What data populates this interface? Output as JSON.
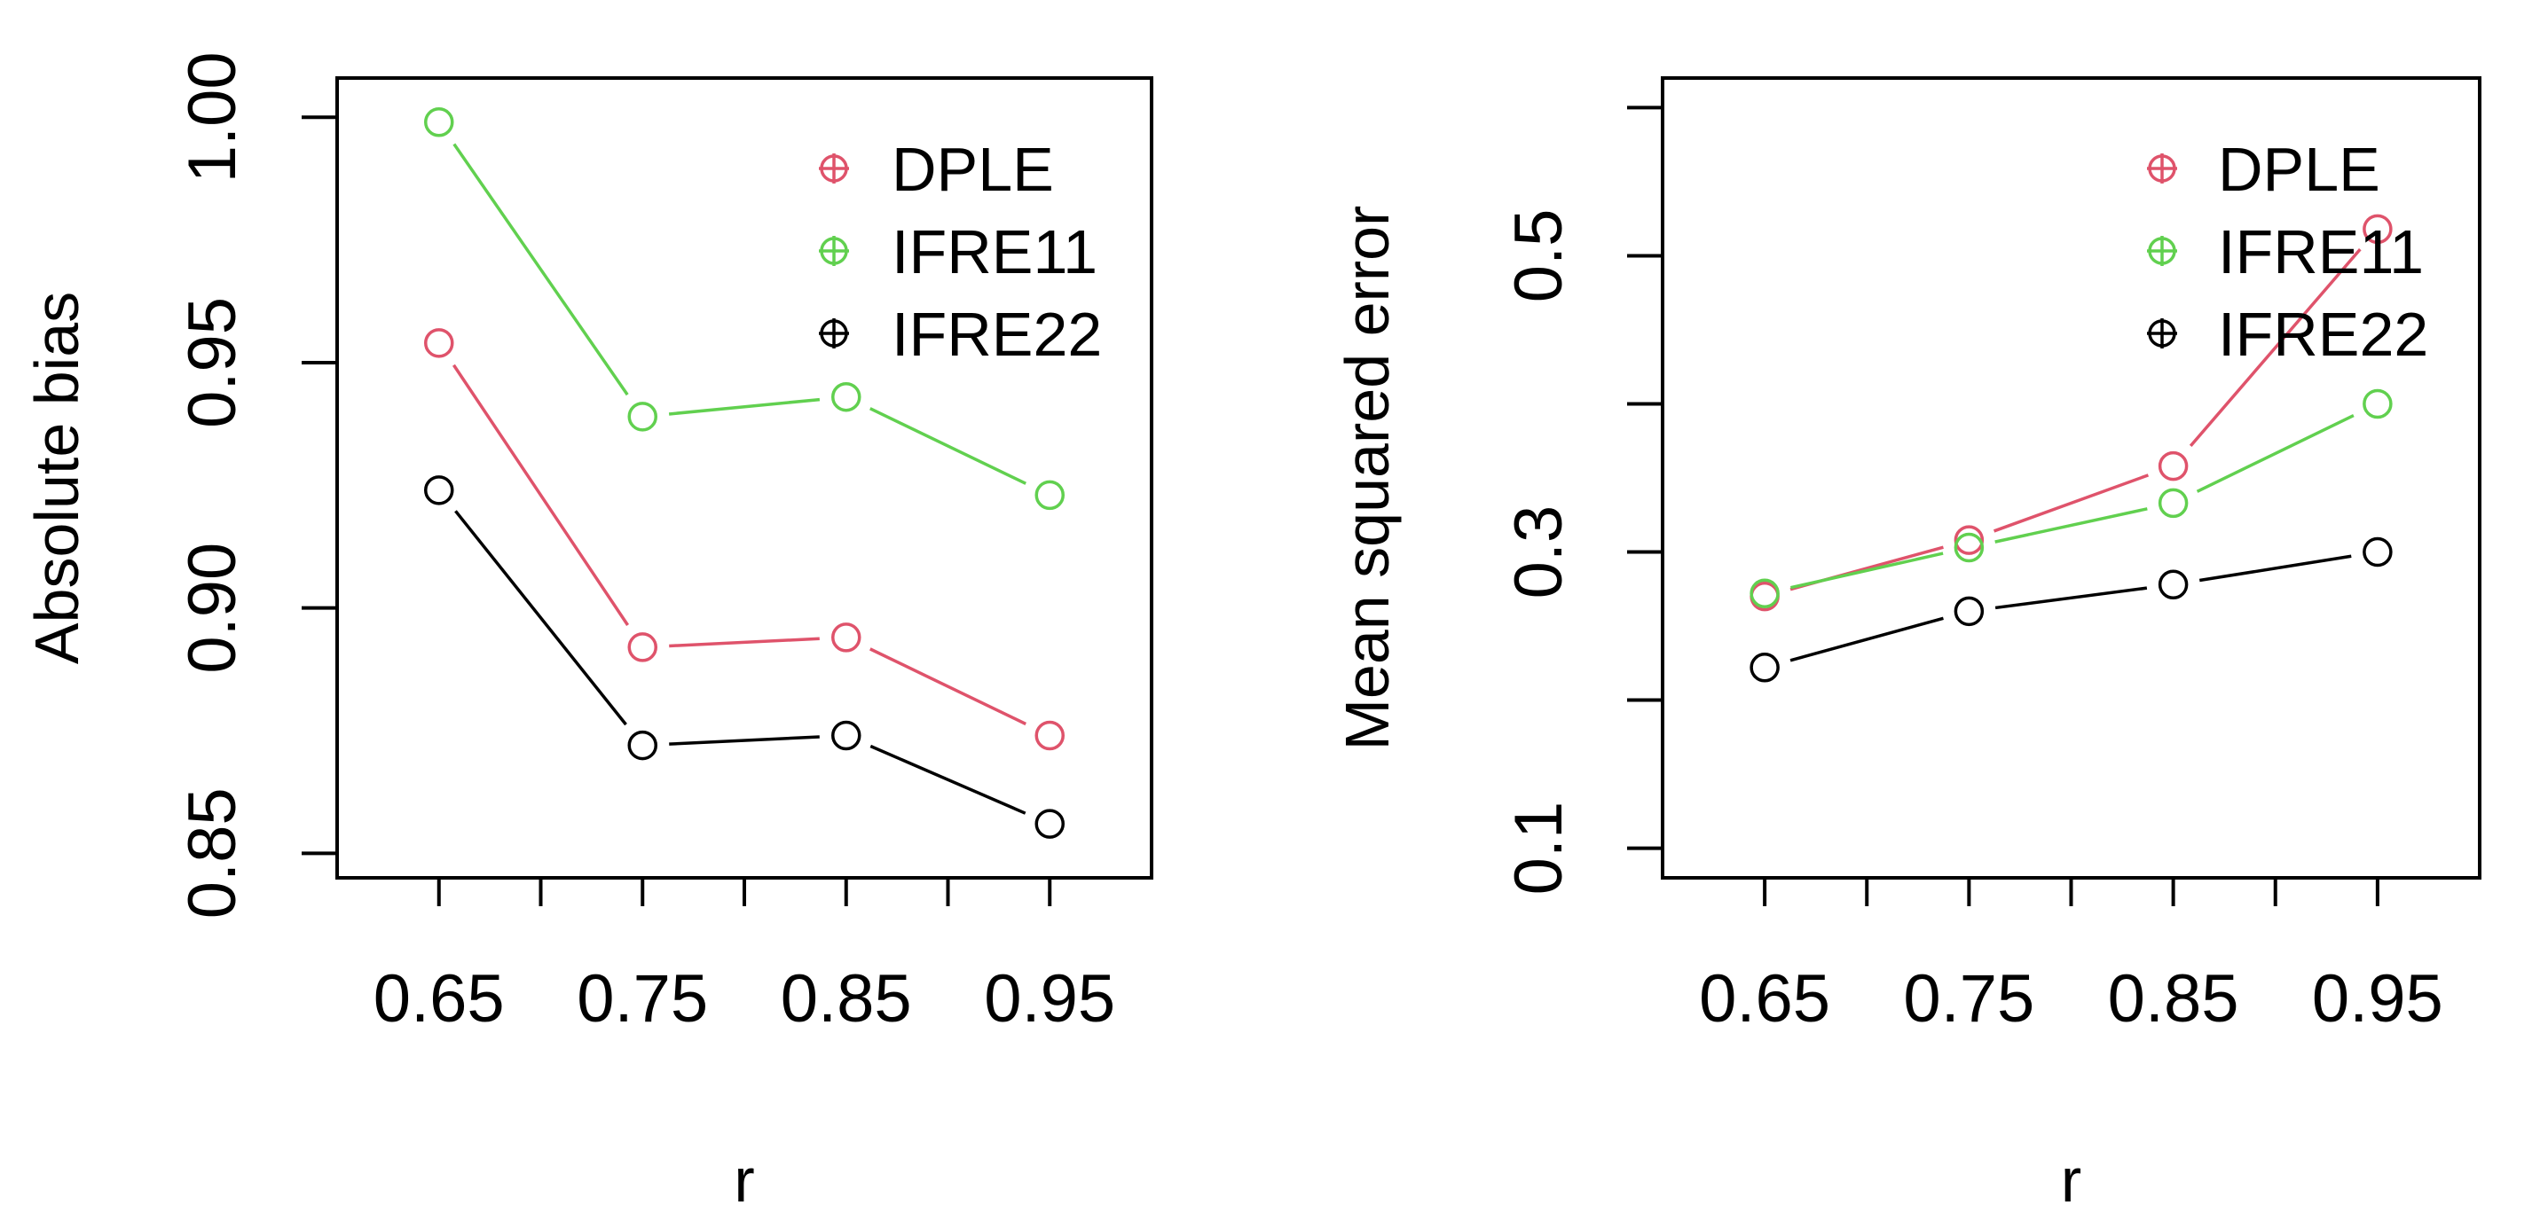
{
  "chart_data": [
    {
      "type": "line",
      "title": "",
      "xlabel": "r",
      "ylabel": "Absolute bias",
      "x": [
        0.65,
        0.75,
        0.85,
        0.95
      ],
      "x_tick_labels": [
        "0.65",
        "0.75",
        "0.85",
        "0.95"
      ],
      "x_minor_ticks": [
        0.7,
        0.8,
        0.9
      ],
      "xlim": [
        0.6,
        1.0
      ],
      "ylim": [
        0.845,
        1.008
      ],
      "y_ticks": [
        0.85,
        0.9,
        0.95,
        1.0
      ],
      "y_tick_labels": [
        "0.85",
        "0.90",
        "0.95",
        "1.00"
      ],
      "legend_position": "top-right",
      "series": [
        {
          "name": "DPLE",
          "color": "#DF536B",
          "values": [
            0.954,
            0.892,
            0.894,
            0.874
          ]
        },
        {
          "name": "IFRE11",
          "color": "#61D04F",
          "values": [
            0.999,
            0.939,
            0.943,
            0.923
          ]
        },
        {
          "name": "IFRE22",
          "color": "#000000",
          "values": [
            0.924,
            0.872,
            0.874,
            0.856
          ]
        }
      ]
    },
    {
      "type": "line",
      "title": "",
      "xlabel": "r",
      "ylabel": "Mean squared error",
      "x": [
        0.65,
        0.75,
        0.85,
        0.95
      ],
      "x_tick_labels": [
        "0.65",
        "0.75",
        "0.85",
        "0.95"
      ],
      "x_minor_ticks": [
        0.7,
        0.8,
        0.9
      ],
      "xlim": [
        0.6,
        1.0
      ],
      "ylim": [
        0.08,
        0.62
      ],
      "y_ticks": [
        0.1,
        0.2,
        0.3,
        0.4,
        0.5,
        0.6
      ],
      "y_tick_labels": [
        "0.1",
        "",
        "0.3",
        "",
        "0.5",
        ""
      ],
      "legend_position": "top-right",
      "series": [
        {
          "name": "DPLE",
          "color": "#DF536B",
          "values": [
            0.27,
            0.308,
            0.358,
            0.518
          ]
        },
        {
          "name": "IFRE11",
          "color": "#61D04F",
          "values": [
            0.272,
            0.303,
            0.333,
            0.4
          ]
        },
        {
          "name": "IFRE22",
          "color": "#000000",
          "values": [
            0.222,
            0.26,
            0.278,
            0.3
          ]
        }
      ]
    }
  ]
}
